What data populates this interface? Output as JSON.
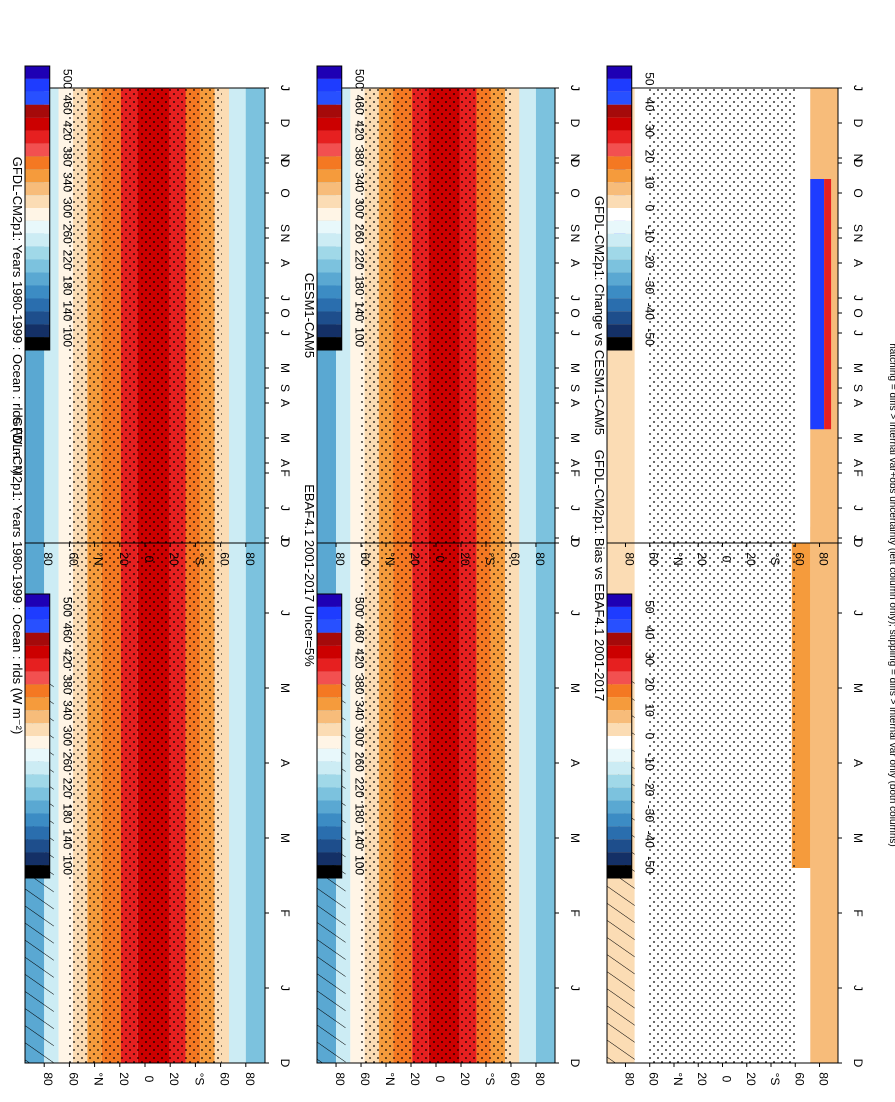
{
  "chart_data": {
    "type": "heatmap",
    "orientation": "rotated-90-clockwise",
    "footnote": "hatching = diffs > internal var+obs uncertainty (left column only); stippling = diffs > internal var only (both columns)",
    "x_ticks": [
      "D",
      "J",
      "F",
      "M",
      "A",
      "M",
      "J",
      "J",
      "A",
      "S",
      "O",
      "N",
      "D",
      "J"
    ],
    "lat_ticks": [
      "80",
      "60",
      "°N",
      "20",
      "0",
      "20",
      "°S",
      "60",
      "80"
    ],
    "colorbars": {
      "abs": {
        "labels": [
          "500",
          "460",
          "420",
          "380",
          "340",
          "300",
          "260",
          "220",
          "180",
          "140",
          "100"
        ],
        "colors": [
          "#1e00b4",
          "#1e3cff",
          "#2850ff",
          "#a50a0a",
          "#cc0000",
          "#e62020",
          "#f25050",
          "#f47822",
          "#f59b3c",
          "#f7bc7a",
          "#fbdcb4",
          "#fff5e6",
          "#e8f8fb",
          "#ccecf4",
          "#a0d8e8",
          "#7cc2de",
          "#5aa8d2",
          "#3c8cc4",
          "#2a6eae",
          "#1e4e8c",
          "#143066",
          "#000000"
        ]
      },
      "diff": {
        "labels": [
          "50",
          "40",
          "30",
          "20",
          "10",
          "0",
          "-10",
          "-20",
          "-30",
          "-40",
          "-50"
        ],
        "colors": [
          "#1e00b4",
          "#1e3cff",
          "#2850ff",
          "#a50a0a",
          "#cc0000",
          "#e62020",
          "#f25050",
          "#f47822",
          "#f59b3c",
          "#f7bc7a",
          "#fbdcb4",
          "#ffffff",
          "#e8f8fb",
          "#ccecf4",
          "#a0d8e8",
          "#7cc2de",
          "#5aa8d2",
          "#3c8cc4",
          "#2a6eae",
          "#1e4e8c",
          "#143066",
          "#000000"
        ]
      }
    },
    "panels": [
      {
        "id": "p1",
        "title": "GFDL-CM2p1: Years 1980-1999 : Ocean : rlds (W m⁻²)",
        "kind": "abs",
        "hatching": true,
        "stippling": true
      },
      {
        "id": "p2",
        "title": "GFDL-CM2p1: Years 1980-1999 : Ocean : rlds (W m⁻²)",
        "kind": "abs",
        "hatching": false,
        "stippling": true
      },
      {
        "id": "p3",
        "title": "EBAF4.1 2001-2017 Uncer=5%",
        "kind": "abs",
        "hatching": true,
        "stippling": true
      },
      {
        "id": "p4",
        "title": "CESM1-CAM5",
        "kind": "abs",
        "hatching": false,
        "stippling": true
      },
      {
        "id": "p5",
        "title": "GFDL-CM2p1: Bias vs EBAF4.1 2001-2017",
        "kind": "diff",
        "hatching": true,
        "stippling": true
      },
      {
        "id": "p6",
        "title": "GFDL-CM2p1: Change vs CESM1-CAM5",
        "kind": "diff",
        "hatching": false,
        "stippling": true
      }
    ]
  }
}
